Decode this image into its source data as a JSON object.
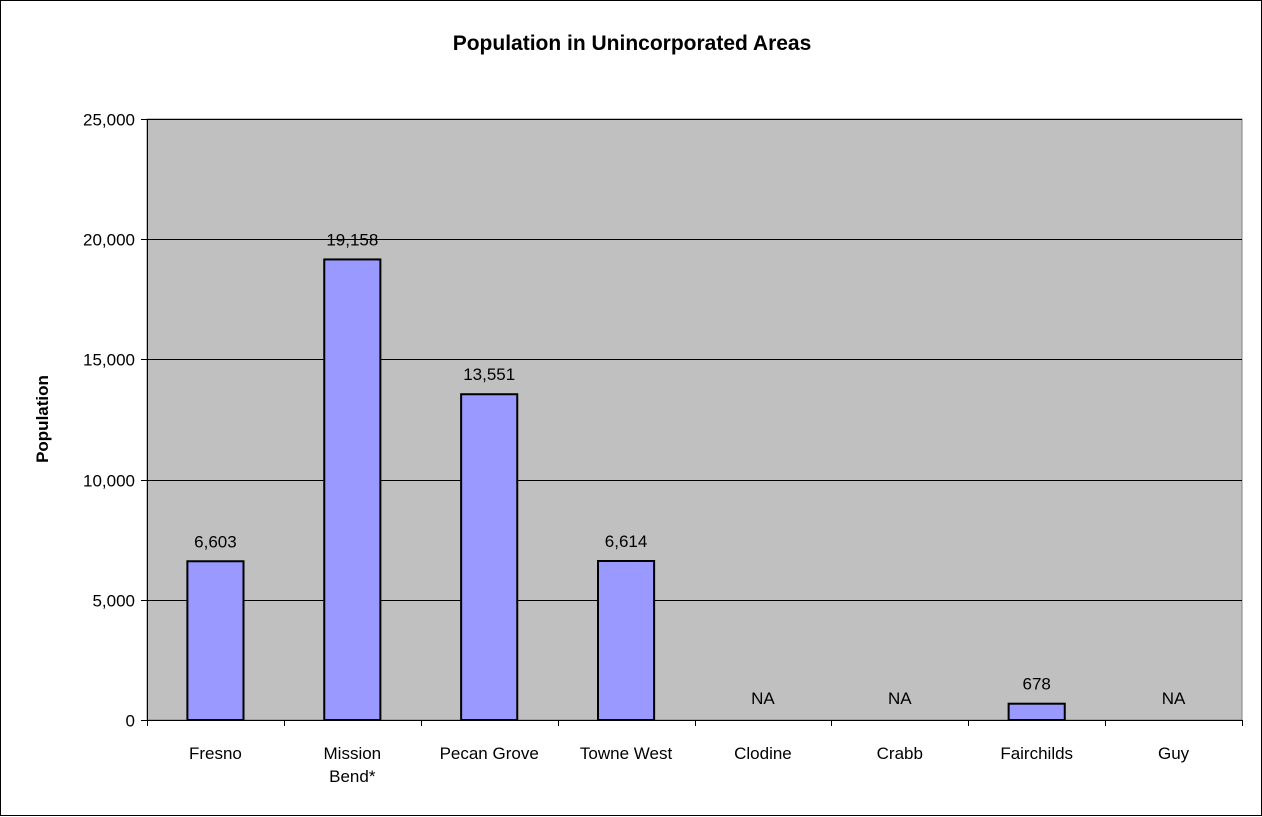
{
  "chart_data": {
    "type": "bar",
    "title": "Population in Unincorporated Areas",
    "xlabel": "",
    "ylabel": "Population",
    "ylim": [
      0,
      25000
    ],
    "yticks": [
      0,
      5000,
      10000,
      15000,
      20000,
      25000
    ],
    "ytick_labels": [
      "0",
      "5,000",
      "10,000",
      "15,000",
      "20,000",
      "25,000"
    ],
    "categories": [
      [
        "Fresno"
      ],
      [
        "Mission",
        "Bend*"
      ],
      [
        "Pecan Grove"
      ],
      [
        "Towne West"
      ],
      [
        "Clodine"
      ],
      [
        "Crabb"
      ],
      [
        "Fairchilds"
      ],
      [
        "Guy"
      ]
    ],
    "values": [
      6603,
      19158,
      13551,
      6614,
      null,
      null,
      678,
      null
    ],
    "data_labels": [
      "6,603",
      "19,158",
      "13,551",
      "6,614",
      "NA",
      "NA",
      "678",
      "NA"
    ],
    "grid": true,
    "legend": "none",
    "colors": {
      "bar_fill": "#9999ff",
      "bar_stroke": "#000000",
      "plot_background": "#c0c0c0",
      "gridline": "#000000"
    }
  }
}
